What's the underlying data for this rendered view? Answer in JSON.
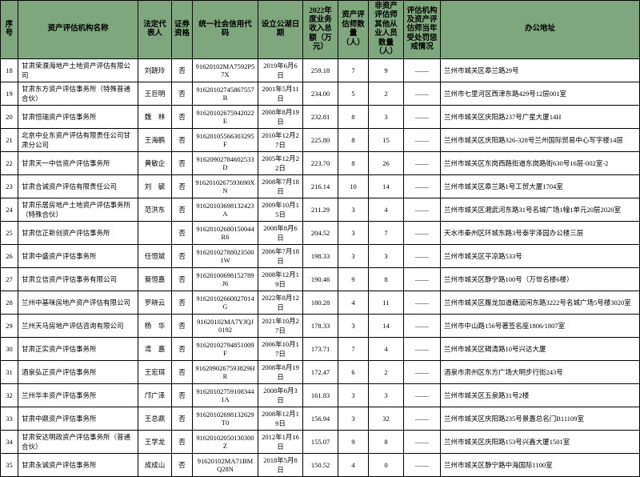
{
  "columns": [
    "序号",
    "资产评估机构名称",
    "法定代表人",
    "证券资格",
    "统一社会信用代码",
    "设立公湖日期",
    "2022年度业务收入总额（万元）",
    "资产评估师数量（人）",
    "非资产评估师其他从业人员数量（人）",
    "评估机构及资产评估师当年受处罚惩戒情况",
    "办公地址"
  ],
  "col_widths": [
    "c0",
    "c1",
    "c2",
    "c3",
    "c4",
    "c5",
    "c6",
    "c7",
    "c8",
    "c9",
    "c10"
  ],
  "rows": [
    {
      "no": "18",
      "name": "甘肃荣濮海地产土地资产评估有限公司",
      "rep": "刘跷玲",
      "sec": "否",
      "code": "91620102MA7592P57X",
      "date": "2019年6月6日",
      "rev": "259.18",
      "n1": "7",
      "n2": "9",
      "pun": "——",
      "addr": "兰州市城关区皋兰路29号"
    },
    {
      "no": "19",
      "name": "甘肃东方资产评估事务所（特殊普通合伙）",
      "rep": "王巨明",
      "sec": "否",
      "code": "91620102745867557B",
      "date": "2001年5月11日",
      "rev": "234.00",
      "n1": "5",
      "n2": "2",
      "pun": "——",
      "addr": "兰州市七里河区西津东路429号12层001室"
    },
    {
      "no": "20",
      "name": "甘肃恒瑞资产评估事务所",
      "rep": "魏　林",
      "sec": "否",
      "code": "91620102675942022E",
      "date": "2008年8月19日",
      "rev": "232.81",
      "n1": "8",
      "n2": "3",
      "pun": "——",
      "addr": "兰州市城关区庆阳路237号广星大厦14H"
    },
    {
      "no": "21",
      "name": "北京中业东资产评估有限责任公司甘肃分公司",
      "rep": "王海鹏",
      "sec": "否",
      "code": "91620105566303295F",
      "date": "2010年12月27日",
      "rev": "225.80",
      "n1": "8",
      "n2": "15",
      "pun": "——",
      "addr": "兰州市城关区庆阳路326-328号兰州国际贸易中心写字楼14层"
    },
    {
      "no": "22",
      "name": "甘肃天一中信资产评估事务所",
      "rep": "黄敏企",
      "sec": "否",
      "code": "91620902784602533D",
      "date": "2005年12月22日",
      "rev": "223.70",
      "n1": "8",
      "n2": "26",
      "pun": "——",
      "addr": "兰州市城关区东岗西路街道东岗路街630号16层-002室-2"
    },
    {
      "no": "23",
      "name": "甘肃合诚资产评估有限责任公司",
      "rep": "刘　毓",
      "sec": "否",
      "code": "9162010267593690XN",
      "date": "2008年7月18日",
      "rev": "216.14",
      "n1": "10",
      "n2": "14",
      "pun": "——",
      "addr": "兰州市城关区皋兰路1号工贸大厦1704室"
    },
    {
      "no": "24",
      "name": "甘肃乐居房地产土地资产评估事务所（特殊合伙）",
      "rep": "范洪东",
      "sec": "否",
      "code": "91620103698132423A",
      "date": "2009年10月15日",
      "rev": "211.29",
      "n1": "3",
      "n2": "4",
      "pun": "——",
      "addr": "兰州市城关区湘武河东路31号名城广场1幢1单元20层2020室"
    },
    {
      "no": "25",
      "name": "甘肃信正新创资产评估事务所",
      "rep": "",
      "sec": "否",
      "code": "91620102680150044R6",
      "date": "2008年8月6日",
      "rev": "204.52",
      "n1": "3",
      "n2": "7",
      "pun": "——",
      "addr": "天水市秦州区环城东路3号泰宇泽园办公楼三层"
    },
    {
      "no": "26",
      "name": "甘肃中盛资产评估事务所",
      "rep": "任恒斌",
      "sec": "否",
      "code": "916201027880235001W",
      "date": "2006年7月18日",
      "rev": "198.33",
      "n1": "3",
      "n2": "3",
      "pun": "——",
      "addr": "兰州市城关区平凉路533号"
    },
    {
      "no": "27",
      "name": "甘肃立信资产评估事务有限公司",
      "rep": "蔡恒嘉",
      "sec": "否",
      "code": "91620100698152789J6",
      "date": "2008年12月19日",
      "rev": "190.46",
      "n1": "9",
      "n2": "8",
      "pun": "——",
      "addr": "兰州市城关区静宁路100号（万世名楼6楼）"
    },
    {
      "no": "28",
      "name": "兰州中基咪房地产资产评估有限公司",
      "rep": "罗晓云",
      "sec": "否",
      "code": "91620102660027014G",
      "date": "2022年8月12日",
      "rev": "180.28",
      "n1": "4",
      "n2": "11",
      "pun": "——",
      "addr": "兰州市城关区履龙加道藉润闲东路3222号名城广场5号楼3020室"
    },
    {
      "no": "29",
      "name": "兰州天马房地产评估咨询有限公司",
      "rep": "杨　华",
      "sec": "否",
      "code": "91620102MA7YJQJ0192",
      "date": "2021年10月27日",
      "rev": "178.33",
      "n1": "3",
      "n2": "14",
      "pun": "——",
      "addr": "兰州市中山路156号著签名座1806/1807室"
    },
    {
      "no": "30",
      "name": "甘肃正实资产评估事务所",
      "rep": "鸢　嘉",
      "sec": "否",
      "code": "91620102794851009F",
      "date": "2006年10月17日",
      "rev": "173.71",
      "n1": "7",
      "n2": "4",
      "pun": "——",
      "addr": "兰州市城关区碣清路10号兴达大厦"
    },
    {
      "no": "31",
      "name": "酒泉弘正资产评估事务所",
      "rep": "王宏珥",
      "sec": "否",
      "code": "9162090267593829HR",
      "date": "2008年8月19日",
      "rev": "172.47",
      "n1": "6",
      "n2": "2",
      "pun": "——",
      "addr": "酒泉市肃州区东方广场大明步行街243号"
    },
    {
      "no": "32",
      "name": "兰州华丰资产评估事务所",
      "rep": "邝广泽",
      "sec": "否",
      "code": "916201027591083441A",
      "date": "2008年6月3日",
      "rev": "161.83",
      "n1": "3",
      "n2": "3",
      "pun": "——",
      "addr": "兰州市城关区五泉路31号2楼"
    },
    {
      "no": "33",
      "name": "甘肃中鼎资产评估事务所",
      "rep": "王总鼎",
      "sec": "否",
      "code": "91620102698132629T0",
      "date": "2008年12月19日",
      "rev": "156.94",
      "n1": "3",
      "n2": "32",
      "pun": "——",
      "addr": "兰州市城关区庆阳路235号景嘉总名门B11109室"
    },
    {
      "no": "34",
      "name": "甘肃安达明政资产评估事务所（普通合伙）",
      "rep": "王学龙",
      "sec": "否",
      "code": "91620102050130300Z",
      "date": "2012年1月16日",
      "rev": "155.07",
      "n1": "9",
      "n2": "8",
      "pun": "——",
      "addr": "兰州市城关区庆阳路153号兴鑫大厦1501室"
    },
    {
      "no": "35",
      "name": "甘肃永诚资产评估事务所",
      "rep": "成成山",
      "sec": "否",
      "code": "91620102MA71BMQ28N",
      "date": "2018年5月8日",
      "rev": "150.52",
      "n1": "4",
      "n2": "0",
      "pun": "——",
      "addr": "兰州市城关区静宁路中海国际1100室"
    }
  ]
}
